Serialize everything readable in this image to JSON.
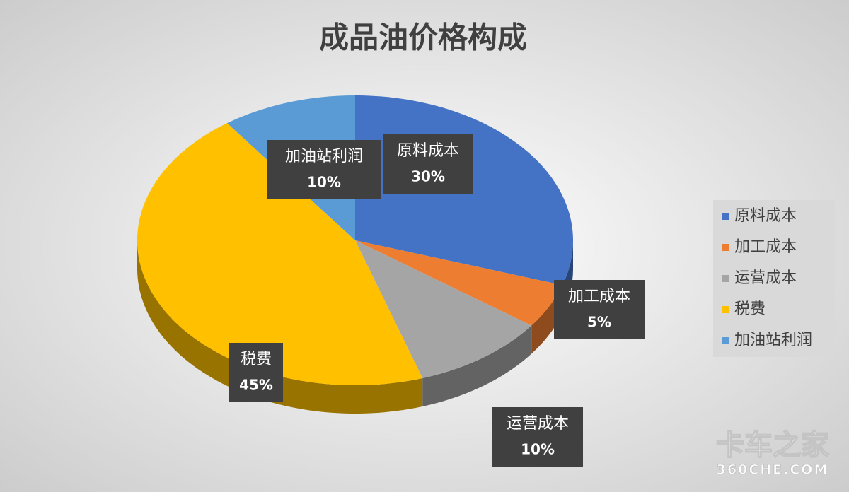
{
  "chart_data": {
    "type": "pie",
    "title": "成品油价格构成",
    "categories": [
      "原料成本",
      "加工成本",
      "运营成本",
      "税费",
      "加油站利润"
    ],
    "values": [
      30,
      5,
      10,
      45,
      10
    ],
    "value_labels": [
      "30%",
      "5%",
      "10%",
      "45%",
      "10%"
    ],
    "colors": [
      "#4472c4",
      "#ed7d31",
      "#a5a5a5",
      "#ffc000",
      "#5b9bd5"
    ],
    "legend": "right"
  },
  "watermark": {
    "brand": "卡车之家",
    "site": "360CHE.COM"
  }
}
